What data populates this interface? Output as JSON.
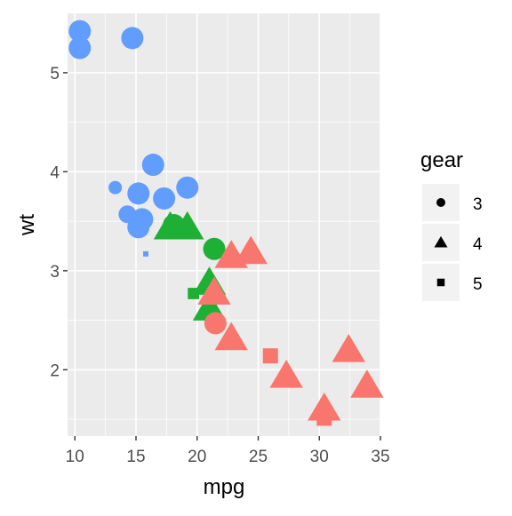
{
  "chart_data": {
    "type": "scatter",
    "title": "",
    "xlabel": "mpg",
    "ylabel": "wt",
    "xlim": [
      9.4,
      35.0
    ],
    "ylim": [
      1.33,
      5.6
    ],
    "x_ticks": [
      10,
      15,
      20,
      25,
      30,
      35
    ],
    "y_ticks": [
      2,
      3,
      4,
      5
    ],
    "x_tick_labels": [
      "10",
      "15",
      "20",
      "25",
      "30",
      "35"
    ],
    "y_tick_labels": [
      "2",
      "3",
      "4",
      "5"
    ],
    "grid": true,
    "panel_background": "#ebebeb",
    "legend": {
      "title": "gear",
      "position": "right",
      "entries": [
        {
          "label": "3",
          "shape": "circle"
        },
        {
          "label": "4",
          "shape": "triangle"
        },
        {
          "label": "5",
          "shape": "square"
        }
      ]
    },
    "color_scale_note": "point colour and size vary per point; no legend shown for them",
    "points": [
      {
        "x": 10.4,
        "y": 5.42,
        "gear": "3",
        "color": "#619cff",
        "size": "large"
      },
      {
        "x": 10.4,
        "y": 5.25,
        "gear": "3",
        "color": "#619cff",
        "size": "large"
      },
      {
        "x": 14.7,
        "y": 5.35,
        "gear": "3",
        "color": "#619cff",
        "size": "large"
      },
      {
        "x": 16.4,
        "y": 4.07,
        "gear": "3",
        "color": "#619cff",
        "size": "large"
      },
      {
        "x": 13.3,
        "y": 3.84,
        "gear": "3",
        "color": "#619cff",
        "size": "small"
      },
      {
        "x": 15.2,
        "y": 3.78,
        "gear": "3",
        "color": "#619cff",
        "size": "large"
      },
      {
        "x": 17.3,
        "y": 3.73,
        "gear": "3",
        "color": "#619cff",
        "size": "large"
      },
      {
        "x": 19.2,
        "y": 3.84,
        "gear": "3",
        "color": "#619cff",
        "size": "large"
      },
      {
        "x": 14.3,
        "y": 3.57,
        "gear": "3",
        "color": "#619cff",
        "size": "medium"
      },
      {
        "x": 15.5,
        "y": 3.52,
        "gear": "3",
        "color": "#619cff",
        "size": "large"
      },
      {
        "x": 15.2,
        "y": 3.44,
        "gear": "3",
        "color": "#619cff",
        "size": "large"
      },
      {
        "x": 15.8,
        "y": 3.17,
        "gear": "5",
        "color": "#619cff",
        "size": "tiny"
      },
      {
        "x": 18.1,
        "y": 3.46,
        "gear": "3",
        "color": "#1eb034",
        "size": "large"
      },
      {
        "x": 17.8,
        "y": 3.44,
        "gear": "4",
        "color": "#1eb034",
        "size": "large"
      },
      {
        "x": 19.2,
        "y": 3.44,
        "gear": "4",
        "color": "#1eb034",
        "size": "large"
      },
      {
        "x": 21.4,
        "y": 3.22,
        "gear": "3",
        "color": "#1eb034",
        "size": "large"
      },
      {
        "x": 21.0,
        "y": 2.88,
        "gear": "4",
        "color": "#1eb034",
        "size": "large"
      },
      {
        "x": 19.7,
        "y": 2.77,
        "gear": "5",
        "color": "#1eb034",
        "size": "small"
      },
      {
        "x": 21.0,
        "y": 2.62,
        "gear": "4",
        "color": "#1eb034",
        "size": "large"
      },
      {
        "x": 21.4,
        "y": 2.78,
        "gear": "4",
        "color": "#f8766d",
        "size": "large"
      },
      {
        "x": 21.5,
        "y": 2.47,
        "gear": "3",
        "color": "#f8766d",
        "size": "large"
      },
      {
        "x": 22.8,
        "y": 3.15,
        "gear": "4",
        "color": "#f8766d",
        "size": "large"
      },
      {
        "x": 22.8,
        "y": 2.32,
        "gear": "4",
        "color": "#f8766d",
        "size": "large"
      },
      {
        "x": 24.4,
        "y": 3.19,
        "gear": "4",
        "color": "#f8766d",
        "size": "large"
      },
      {
        "x": 26.0,
        "y": 2.14,
        "gear": "5",
        "color": "#f8766d",
        "size": "medium"
      },
      {
        "x": 27.3,
        "y": 1.94,
        "gear": "4",
        "color": "#f8766d",
        "size": "large"
      },
      {
        "x": 30.4,
        "y": 1.61,
        "gear": "4",
        "color": "#f8766d",
        "size": "large"
      },
      {
        "x": 30.4,
        "y": 1.51,
        "gear": "5",
        "color": "#f8766d",
        "size": "medium"
      },
      {
        "x": 32.4,
        "y": 2.2,
        "gear": "4",
        "color": "#f8766d",
        "size": "large"
      },
      {
        "x": 33.9,
        "y": 1.84,
        "gear": "4",
        "color": "#f8766d",
        "size": "large"
      }
    ]
  }
}
